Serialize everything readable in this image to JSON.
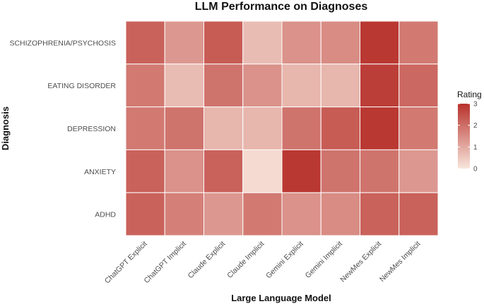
{
  "chart_data": {
    "type": "heatmap",
    "title": "LLM Performance on Diagnoses",
    "xlabel": "Large Language Model",
    "ylabel": "Diagnosis",
    "x_categories": [
      "ChatGPT Explicit",
      "ChatGPT Implicit",
      "Claude Explicit",
      "Claude Implicit",
      "Gemini Explicit",
      "Gemini Implicit",
      "NewMes Explicit",
      "NewMes Implicit"
    ],
    "y_categories": [
      "SCHIZOPHRENIA/PSYCHOSIS",
      "EATING DISORDER",
      "DEPRESSION",
      "ANXIETY",
      "ADHD"
    ],
    "values": [
      [
        2.2,
        1.3,
        2.3,
        0.7,
        1.4,
        1.5,
        2.9,
        1.8
      ],
      [
        1.8,
        0.7,
        1.9,
        1.4,
        0.8,
        0.8,
        2.8,
        2.1
      ],
      [
        1.8,
        1.9,
        0.8,
        0.8,
        1.9,
        2.3,
        2.9,
        1.8
      ],
      [
        2.2,
        1.4,
        2.2,
        0.2,
        2.9,
        1.9,
        1.9,
        1.3
      ],
      [
        2.2,
        1.7,
        1.3,
        1.8,
        1.4,
        1.5,
        2.2,
        2.2
      ]
    ],
    "legend": {
      "title": "Rating",
      "ticks": [
        "0",
        "1",
        "2",
        "3"
      ],
      "range": [
        0,
        3
      ],
      "low_color": "#f8e6dc",
      "high_color": "#b8322c",
      "placement": "right"
    },
    "grid": false
  }
}
